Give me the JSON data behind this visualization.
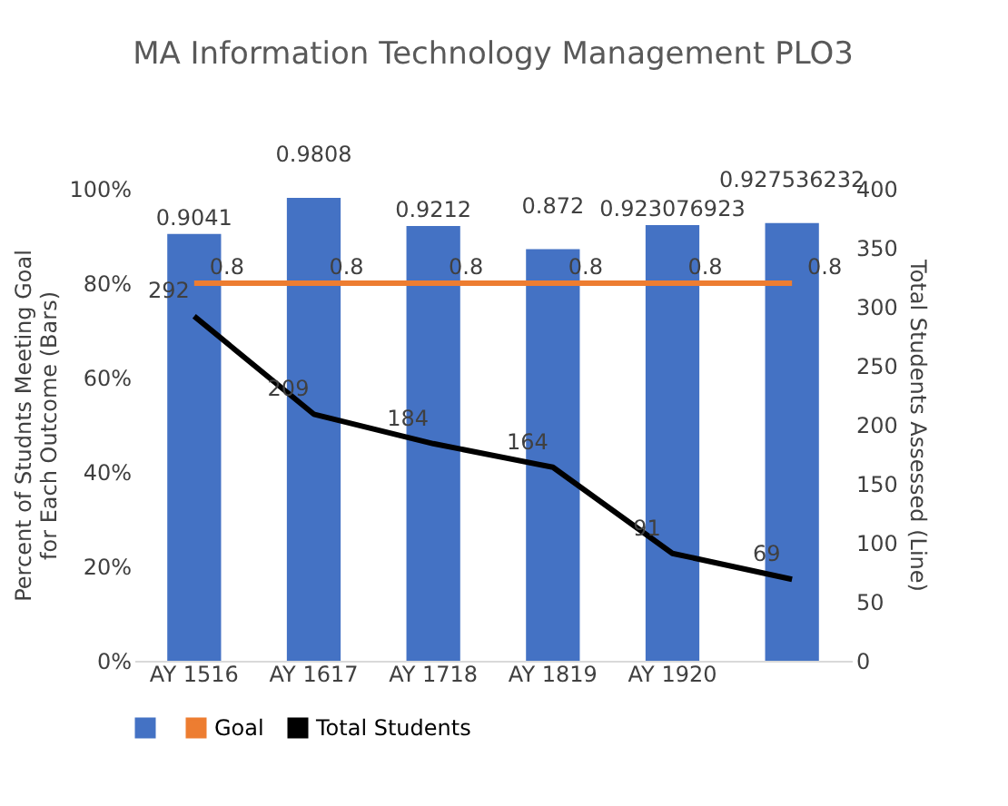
{
  "chart_data": {
    "type": "bar",
    "title": "MA Information Technology Management PLO3",
    "ylabel": "Percent of Studnts Meeting Goal for Each Outcome (Bars)",
    "y2label": "Total Students Assessed (Line)",
    "categories": [
      "AY 1516",
      "AY 1617",
      "AY 1718",
      "AY 1819",
      "AY 1920",
      null
    ],
    "series": [
      {
        "type": "bar",
        "color": "#4472c4",
        "values": [
          0.9041,
          0.9808,
          0.9212,
          0.872,
          0.923076923,
          0.927536232
        ]
      },
      {
        "type": "line",
        "name": "Goal",
        "color": "#ed7d31",
        "values": [
          0.8,
          0.8,
          0.8,
          0.8,
          0.8,
          0.8
        ]
      },
      {
        "type": "line",
        "name": "Total Students",
        "color": "#000000",
        "axis": "y2",
        "values": [
          292,
          209,
          184,
          164,
          91,
          69
        ]
      }
    ],
    "ylim": [
      0,
      1
    ],
    "yticks": [
      {
        "value": 0,
        "label": "0%"
      },
      {
        "value": 0.2,
        "label": "20%"
      },
      {
        "value": 0.4,
        "label": "40%"
      },
      {
        "value": 0.6,
        "label": "60%"
      },
      {
        "value": 0.8,
        "label": "80%"
      },
      {
        "value": 1,
        "label": "100%"
      }
    ],
    "y2lim": [
      0,
      400
    ],
    "y2ticks": [
      0,
      50,
      100,
      150,
      200,
      250,
      300,
      350,
      400
    ],
    "data_labels": true,
    "legend": "bottom",
    "marker": "none"
  }
}
